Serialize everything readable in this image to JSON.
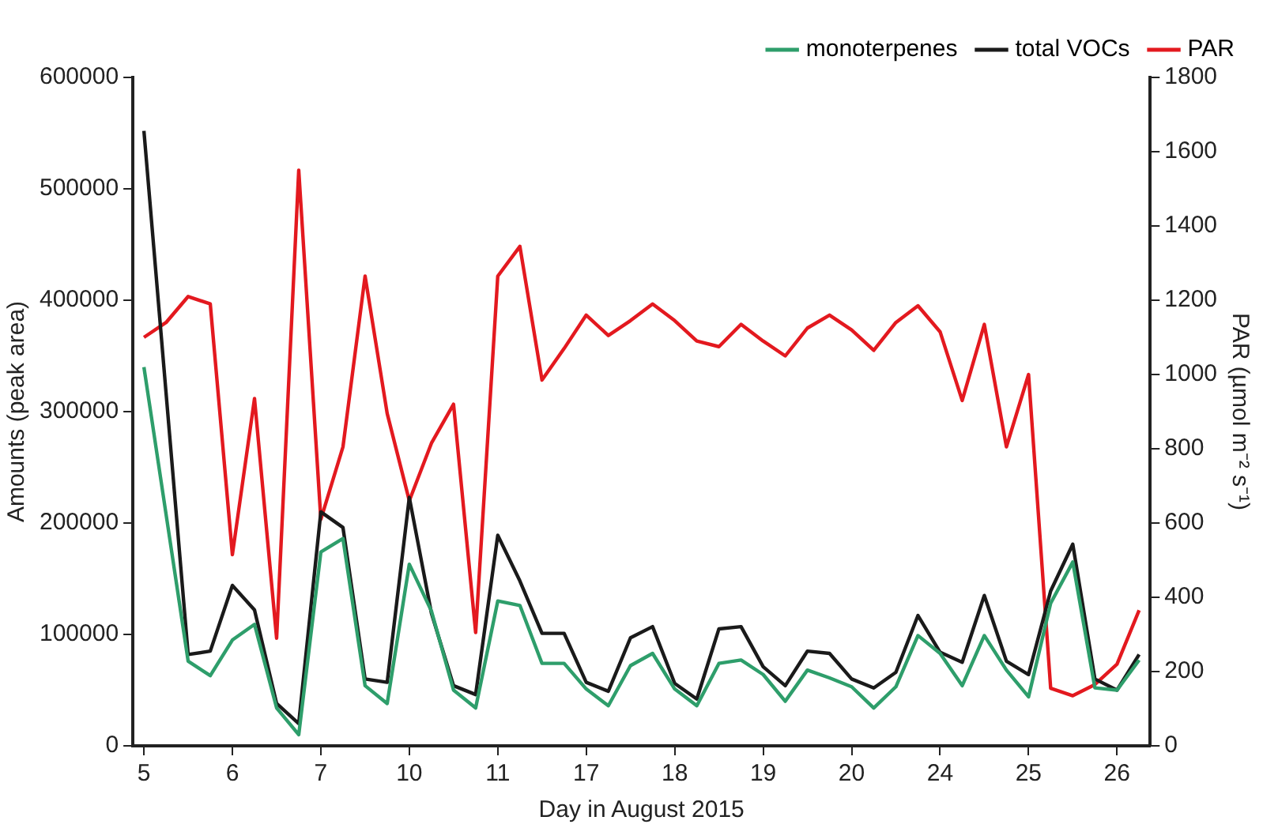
{
  "chart_data": {
    "type": "line",
    "xlabel": "Day in August 2015",
    "ylabel": "Amounts (peak area)",
    "y2label": "PAR (µmol m⁻² s⁻¹)",
    "categories": [
      "5",
      null,
      null,
      null,
      "6",
      null,
      null,
      null,
      "7",
      null,
      null,
      null,
      "10",
      null,
      null,
      null,
      "11",
      null,
      null,
      null,
      "17",
      null,
      null,
      null,
      "18",
      null,
      null,
      null,
      "19",
      null,
      null,
      null,
      "20",
      null,
      null,
      null,
      "24",
      null,
      null,
      null,
      "25",
      null,
      null,
      null,
      "26",
      null
    ],
    "ylim": [
      0,
      600000
    ],
    "yticks": [
      0,
      100000,
      200000,
      300000,
      400000,
      500000,
      600000
    ],
    "y2lim": [
      0,
      1800
    ],
    "y2ticks": [
      0,
      200,
      400,
      600,
      800,
      1000,
      1200,
      1400,
      1600,
      1800
    ],
    "legend": "top right",
    "marker": "none",
    "line_style": "solid",
    "series": [
      {
        "name": "monoterpenes",
        "color": "#2e9e6b",
        "values": [
          340000,
          208000,
          76000,
          63000,
          95000,
          109000,
          34000,
          10000,
          174000,
          186000,
          54000,
          38000,
          163000,
          121000,
          50000,
          34000,
          130000,
          126000,
          74000,
          74000,
          51000,
          36000,
          72000,
          83000,
          51000,
          36000,
          74000,
          77000,
          64000,
          40000,
          68000,
          61000,
          53000,
          34000,
          53000,
          99000,
          83000,
          54000,
          99000,
          68000,
          44000,
          128000,
          165000,
          52000,
          50000,
          77000
        ]
      },
      {
        "name": "total VOCs",
        "color": "#1a1a1a",
        "values": [
          552000,
          317000,
          82000,
          85000,
          144000,
          122000,
          38000,
          20000,
          210000,
          196000,
          60000,
          57000,
          223000,
          119000,
          54000,
          46000,
          189000,
          148000,
          101000,
          101000,
          57000,
          49000,
          97000,
          107000,
          56000,
          42000,
          105000,
          107000,
          71000,
          54000,
          85000,
          83000,
          60000,
          52000,
          66000,
          117000,
          84000,
          75000,
          135000,
          76000,
          64000,
          139000,
          181000,
          60000,
          50000,
          82000
        ]
      },
      {
        "name": "PAR",
        "color": "#e3191f",
        "axis": "y2",
        "values": [
          1100,
          1140,
          1210,
          1190,
          515,
          935,
          290,
          1550,
          610,
          805,
          1265,
          895,
          660,
          815,
          920,
          305,
          1265,
          1345,
          985,
          1070,
          1160,
          1105,
          1145,
          1190,
          1145,
          1090,
          1075,
          1135,
          1090,
          1050,
          1125,
          1160,
          1120,
          1065,
          1140,
          1185,
          1115,
          930,
          1135,
          805,
          1000,
          155,
          135,
          165,
          220,
          365
        ]
      }
    ]
  }
}
